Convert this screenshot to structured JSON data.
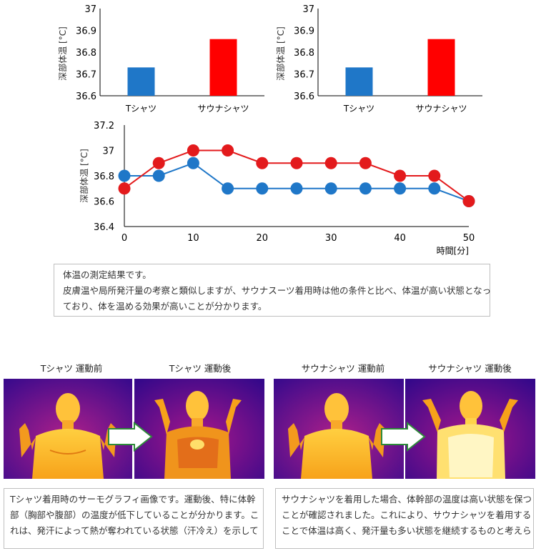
{
  "chart_data": [
    {
      "type": "bar",
      "categories": [
        "Tシャツ",
        "サウナシャツ"
      ],
      "values": [
        36.73,
        36.86
      ],
      "colors": [
        "#1f77c8",
        "#ff0000"
      ],
      "ylabel": "深部体温 [°C]",
      "ylim": [
        36.6,
        37.0
      ],
      "yticks": [
        "36.6",
        "36.7",
        "36.8",
        "36.9",
        "37"
      ],
      "grid": false
    },
    {
      "type": "bar",
      "categories": [
        "Tシャツ",
        "サウナシャツ"
      ],
      "values": [
        36.73,
        36.86
      ],
      "colors": [
        "#1f77c8",
        "#ff0000"
      ],
      "ylabel": "深部体温 [°C]",
      "ylim": [
        36.6,
        37.0
      ],
      "yticks": [
        "36.6",
        "36.7",
        "36.8",
        "36.9",
        "37"
      ],
      "grid": false
    },
    {
      "type": "line",
      "x": [
        0,
        5,
        10,
        15,
        20,
        25,
        30,
        35,
        40,
        45,
        50
      ],
      "series": [
        {
          "color": "#e31a1c",
          "values": [
            36.7,
            36.9,
            37.0,
            37.0,
            36.9,
            36.9,
            36.9,
            36.9,
            36.8,
            36.8,
            36.6
          ]
        },
        {
          "color": "#1f77c8",
          "values": [
            36.8,
            36.8,
            36.9,
            36.7,
            36.7,
            36.7,
            36.7,
            36.7,
            36.7,
            36.7,
            36.6
          ]
        }
      ],
      "xlabel": "時間[分]",
      "ylabel": "深部体温 [°C]",
      "xlim": [
        0,
        50
      ],
      "ylim": [
        36.4,
        37.2
      ],
      "xticks": [
        "0",
        "10",
        "20",
        "30",
        "40",
        "50"
      ],
      "yticks": [
        "36.4",
        "36.6",
        "36.8",
        "37",
        "37.2"
      ],
      "grid": false
    }
  ],
  "result_box": {
    "line1": "体温の測定結果です。",
    "line2": "皮膚温や局所発汗量の考察と類似しますが、サウナスーツ着用時は他の条件と比べ、体温が高い状態となっ",
    "line3": "ており、体を温める効果が高いことが分かります。"
  },
  "thermal": {
    "labels": [
      "Tシャツ 運動前",
      "Tシャツ 運動後",
      "サウナシャツ 運動前",
      "サウナシャツ 運動後"
    ]
  },
  "caption_left": {
    "line1": "Tシャツ着用時のサーモグラフィ画像です。運動後、特に体幹",
    "line2": "部（胸部や腹部）の温度が低下していることが分かります。こ",
    "line3": "れは、発汗によって熱が奪われている状態（汗冷え）を示して"
  },
  "caption_right": {
    "line1": "サウナシャツを着用した場合、体幹部の温度は高い状態を保つ",
    "line2": "ことが確認されました。これにより、サウナシャツを着用する",
    "line3": "ことで体温は高く、発汗量も多い状態を継続するものと考えら"
  }
}
